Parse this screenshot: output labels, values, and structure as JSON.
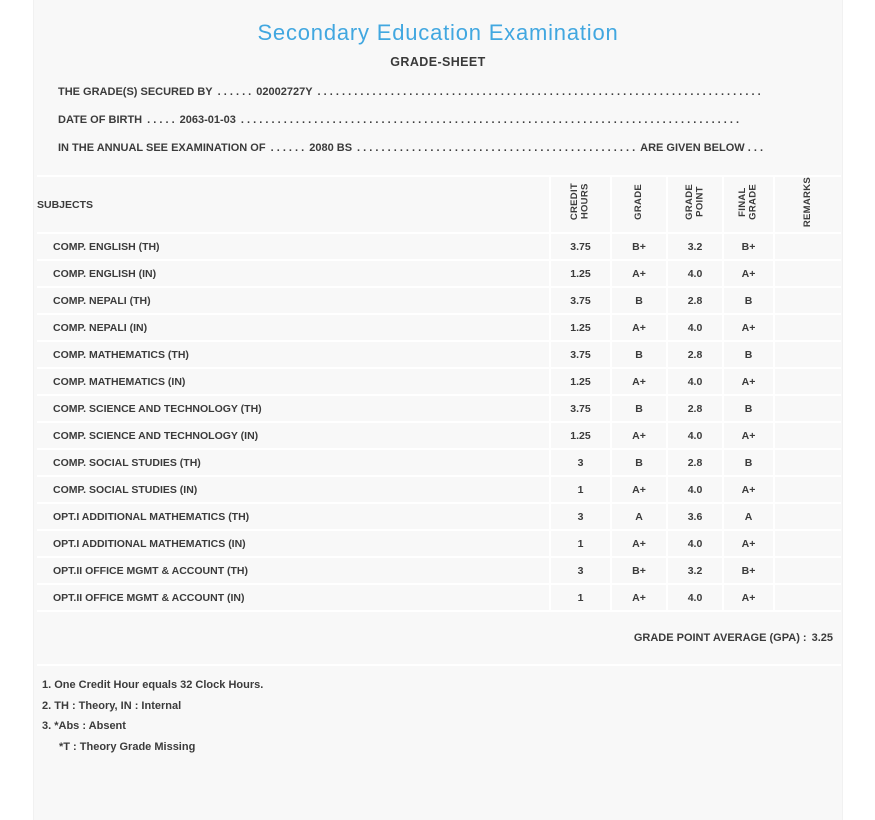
{
  "colors": {
    "accent_blue": "#41a7e0",
    "text": "#3b3b3b",
    "card_background": "#f8f8f8",
    "separator": "#ffffff"
  },
  "header": {
    "title": "Secondary Education Examination",
    "subtitle": "GRADE-SHEET"
  },
  "info": {
    "leader": ". . . . . . . . . . . . . . . . . . . . . . . . . . . . . . . . . . . . . . . . . . . . . . . . . . . . . . . . . . . . . . . . . . . . . . . . . . . . . . . . . . . . . . . . . . . .",
    "secured_by": {
      "label": "THE GRADE(S) SECURED BY",
      "sep_dots": ". . . . . .",
      "value": "02002727Y"
    },
    "dob": {
      "label": "DATE OF BIRTH",
      "sep_dots": ". . . . .",
      "value": "2063-01-03"
    },
    "exam": {
      "label": "IN THE ANNUAL SEE EXAMINATION OF",
      "sep_dots": ". . . . . .",
      "value": "2080 BS",
      "tail": "ARE GIVEN BELOW . . ."
    }
  },
  "table": {
    "headers": {
      "subjects": "SUBJECTS",
      "credit_hours": "CREDIT\nHOURS",
      "grade": "GRADE",
      "grade_point": "GRADE\nPOINT",
      "final_grade": "FINAL\nGRADE",
      "remarks": "REMARKS"
    },
    "rows": [
      {
        "subject": "COMP. ENGLISH (TH)",
        "credit_hours": "3.75",
        "grade": "B+",
        "grade_point": "3.2",
        "final_grade": "B+",
        "remarks": ""
      },
      {
        "subject": "COMP. ENGLISH (IN)",
        "credit_hours": "1.25",
        "grade": "A+",
        "grade_point": "4.0",
        "final_grade": "A+",
        "remarks": ""
      },
      {
        "subject": "COMP. NEPALI (TH)",
        "credit_hours": "3.75",
        "grade": "B",
        "grade_point": "2.8",
        "final_grade": "B",
        "remarks": ""
      },
      {
        "subject": "COMP. NEPALI (IN)",
        "credit_hours": "1.25",
        "grade": "A+",
        "grade_point": "4.0",
        "final_grade": "A+",
        "remarks": ""
      },
      {
        "subject": "COMP. MATHEMATICS (TH)",
        "credit_hours": "3.75",
        "grade": "B",
        "grade_point": "2.8",
        "final_grade": "B",
        "remarks": ""
      },
      {
        "subject": "COMP. MATHEMATICS (IN)",
        "credit_hours": "1.25",
        "grade": "A+",
        "grade_point": "4.0",
        "final_grade": "A+",
        "remarks": ""
      },
      {
        "subject": "COMP. SCIENCE AND TECHNOLOGY (TH)",
        "credit_hours": "3.75",
        "grade": "B",
        "grade_point": "2.8",
        "final_grade": "B",
        "remarks": ""
      },
      {
        "subject": "COMP. SCIENCE AND TECHNOLOGY (IN)",
        "credit_hours": "1.25",
        "grade": "A+",
        "grade_point": "4.0",
        "final_grade": "A+",
        "remarks": ""
      },
      {
        "subject": "COMP. SOCIAL STUDIES (TH)",
        "credit_hours": "3",
        "grade": "B",
        "grade_point": "2.8",
        "final_grade": "B",
        "remarks": ""
      },
      {
        "subject": "COMP. SOCIAL STUDIES (IN)",
        "credit_hours": "1",
        "grade": "A+",
        "grade_point": "4.0",
        "final_grade": "A+",
        "remarks": ""
      },
      {
        "subject": "OPT.I ADDITIONAL MATHEMATICS (TH)",
        "credit_hours": "3",
        "grade": "A",
        "grade_point": "3.6",
        "final_grade": "A",
        "remarks": ""
      },
      {
        "subject": "OPT.I ADDITIONAL MATHEMATICS (IN)",
        "credit_hours": "1",
        "grade": "A+",
        "grade_point": "4.0",
        "final_grade": "A+",
        "remarks": ""
      },
      {
        "subject": "OPT.II OFFICE MGMT & ACCOUNT (TH)",
        "credit_hours": "3",
        "grade": "B+",
        "grade_point": "3.2",
        "final_grade": "B+",
        "remarks": ""
      },
      {
        "subject": "OPT.II OFFICE MGMT & ACCOUNT (IN)",
        "credit_hours": "1",
        "grade": "A+",
        "grade_point": "4.0",
        "final_grade": "A+",
        "remarks": ""
      }
    ]
  },
  "summary": {
    "gpa_label": "GRADE POINT AVERAGE (GPA) :",
    "gpa_value": "3.25"
  },
  "notes": [
    "1. One Credit Hour equals 32 Clock Hours.",
    "2. TH : Theory, IN : Internal",
    "3. *Abs : Absent",
    "*T : Theory Grade Missing"
  ]
}
